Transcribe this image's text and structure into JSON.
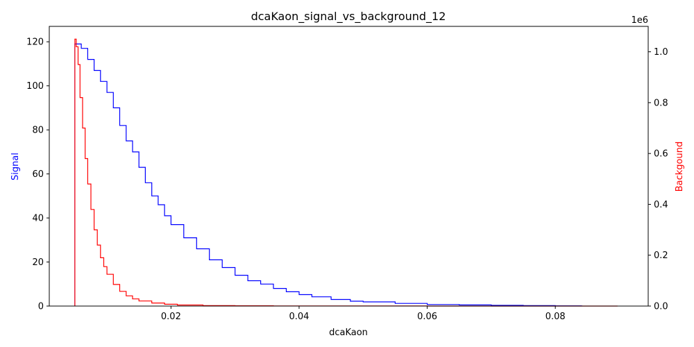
{
  "chart_data": {
    "type": "line",
    "title": "dcaKaon_signal_vs_background_12",
    "xlabel": "dcaKaon",
    "ylabel": "Signal",
    "y2label": "Backgound",
    "y2_multiplier": "1e6",
    "xlim": [
      0.001,
      0.0945
    ],
    "ylim": [
      0,
      127
    ],
    "y2lim": [
      0,
      1.1
    ],
    "x_ticks": [
      "0.02",
      "0.04",
      "0.06",
      "0.08"
    ],
    "x_tick_values": [
      0.02,
      0.04,
      0.06,
      0.08
    ],
    "y_ticks": [
      "0",
      "20",
      "40",
      "60",
      "80",
      "100",
      "120"
    ],
    "y_tick_values": [
      0,
      20,
      40,
      60,
      80,
      100,
      120
    ],
    "y2_ticks": [
      "0.0",
      "0.2",
      "0.4",
      "0.6",
      "0.8",
      "1.0"
    ],
    "y2_tick_values": [
      0,
      0.2,
      0.4,
      0.6,
      0.8,
      1.0
    ],
    "grid": false,
    "legend": "none",
    "colors": {
      "signal": "#0000ff",
      "background": "#ff0000",
      "axis": "#000000"
    },
    "series": [
      {
        "name": "Signal",
        "axis": "left",
        "style": "step",
        "x": [
          0.005,
          0.006,
          0.007,
          0.008,
          0.009,
          0.01,
          0.011,
          0.012,
          0.013,
          0.014,
          0.015,
          0.016,
          0.017,
          0.018,
          0.019,
          0.02,
          0.022,
          0.024,
          0.026,
          0.028,
          0.03,
          0.032,
          0.034,
          0.036,
          0.038,
          0.04,
          0.042,
          0.045,
          0.048,
          0.05,
          0.055,
          0.06,
          0.065,
          0.07,
          0.075,
          0.08,
          0.084
        ],
        "values": [
          119,
          117,
          112,
          107,
          102,
          97,
          90,
          82,
          75,
          70,
          63,
          56,
          50,
          46,
          41,
          37,
          31,
          26,
          21,
          17.5,
          14,
          11.5,
          10,
          8,
          6.5,
          5.2,
          4.2,
          3.0,
          2.2,
          1.9,
          1.2,
          0.7,
          0.5,
          0.3,
          0.2,
          0.1,
          0.05
        ]
      },
      {
        "name": "Backgound",
        "axis": "right",
        "style": "step",
        "x": [
          0.005,
          0.0052,
          0.0055,
          0.0058,
          0.0062,
          0.0066,
          0.007,
          0.0075,
          0.008,
          0.0085,
          0.009,
          0.0095,
          0.01,
          0.011,
          0.012,
          0.013,
          0.014,
          0.015,
          0.017,
          0.019,
          0.021,
          0.025,
          0.03,
          0.036,
          0.04,
          0.05,
          0.06,
          0.08,
          0.0895
        ],
        "values": [
          1.05,
          1.02,
          0.95,
          0.82,
          0.7,
          0.58,
          0.48,
          0.38,
          0.3,
          0.24,
          0.19,
          0.155,
          0.125,
          0.085,
          0.058,
          0.04,
          0.028,
          0.02,
          0.012,
          0.007,
          0.004,
          0.002,
          0.0012,
          0.0006,
          0.0004,
          0.0002,
          0.0001,
          5e-05,
          0.0
        ]
      }
    ]
  }
}
